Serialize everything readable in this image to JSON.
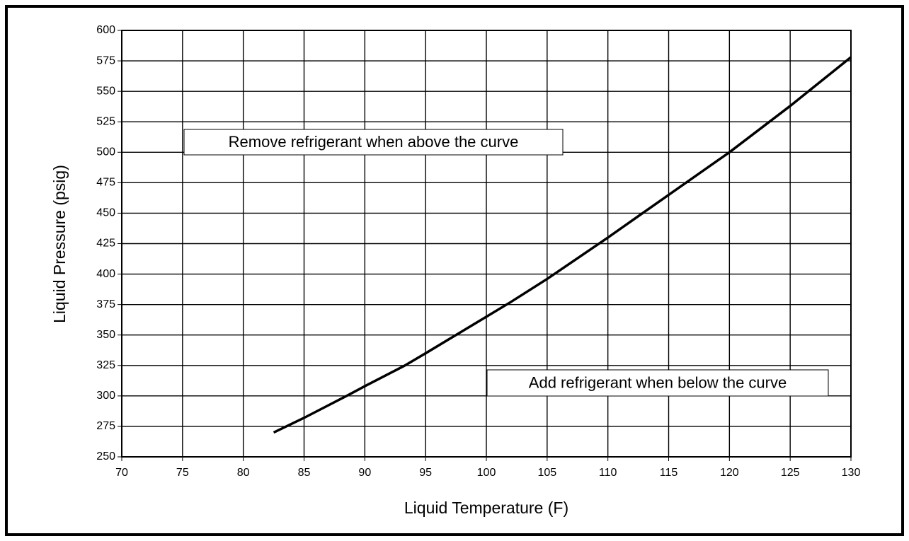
{
  "chart_data": {
    "type": "line",
    "x_label": "Liquid Temperature (F)",
    "y_label": "Liquid Pressure (psig)",
    "annotations": [
      "Remove refrigerant when above the curve",
      "Add refrigerant when below the curve"
    ],
    "x": [
      82.5,
      85,
      88.5,
      90,
      93.3,
      95,
      100,
      102,
      105,
      110,
      115,
      120,
      125,
      126.5,
      130
    ],
    "values": [
      270,
      282,
      300,
      308,
      325,
      335,
      365,
      377,
      396,
      430,
      465,
      500,
      538,
      550,
      578
    ],
    "color": "#000000",
    "xlim": [
      70,
      130
    ],
    "xticks": [
      70,
      75,
      80,
      85,
      90,
      95,
      100,
      105,
      110,
      115,
      120,
      125,
      130
    ],
    "ylim": [
      250,
      600
    ],
    "yticks": [
      250,
      275,
      300,
      325,
      350,
      375,
      400,
      425,
      450,
      475,
      500,
      525,
      550,
      575,
      600
    ],
    "grid": true
  }
}
